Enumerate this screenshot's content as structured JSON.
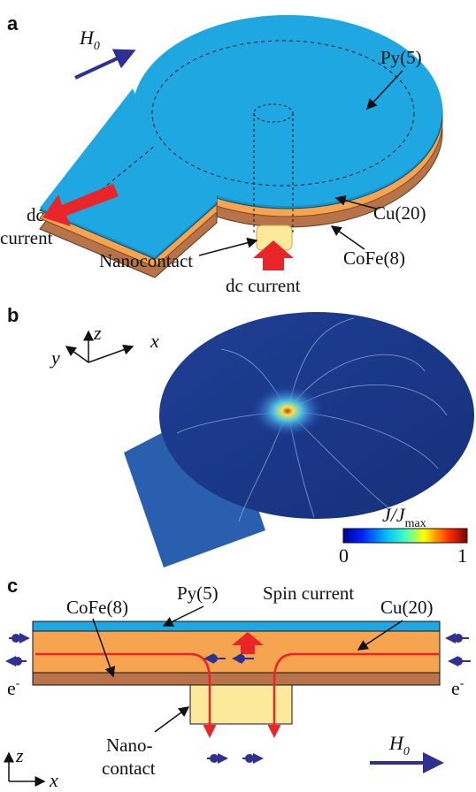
{
  "panel_a": {
    "letter": "a",
    "field_label": {
      "symbol": "H",
      "subscript": "0"
    },
    "py_label": "Py(5)",
    "dc_current_left": [
      "dc",
      "current"
    ],
    "cu_label": "Cu(20)",
    "cofe_label": "CoFe(8)",
    "nanocontact_label": "Nanocontact",
    "dc_current_bottom": "dc current"
  },
  "panel_b": {
    "letter": "b",
    "axes": {
      "y": "y",
      "z": "z",
      "x": "x"
    },
    "colorbar_label": {
      "text": "J/J",
      "subscript": "max"
    },
    "colorbar_min": 0,
    "colorbar_max": 1
  },
  "panel_c": {
    "letter": "c",
    "cofe_label": "CoFe(8)",
    "py_label": "Py(5)",
    "spin_current_label": "Spin current",
    "cu_label": "Cu(20)",
    "electron_left": {
      "text": "e",
      "superscript": "-"
    },
    "electron_right": {
      "text": "e",
      "superscript": "-"
    },
    "nanocontact_label": [
      "Nano-",
      "contact"
    ],
    "field_label": {
      "symbol": "H",
      "subscript": "0"
    },
    "axes": {
      "z": "z",
      "x": "x"
    }
  }
}
